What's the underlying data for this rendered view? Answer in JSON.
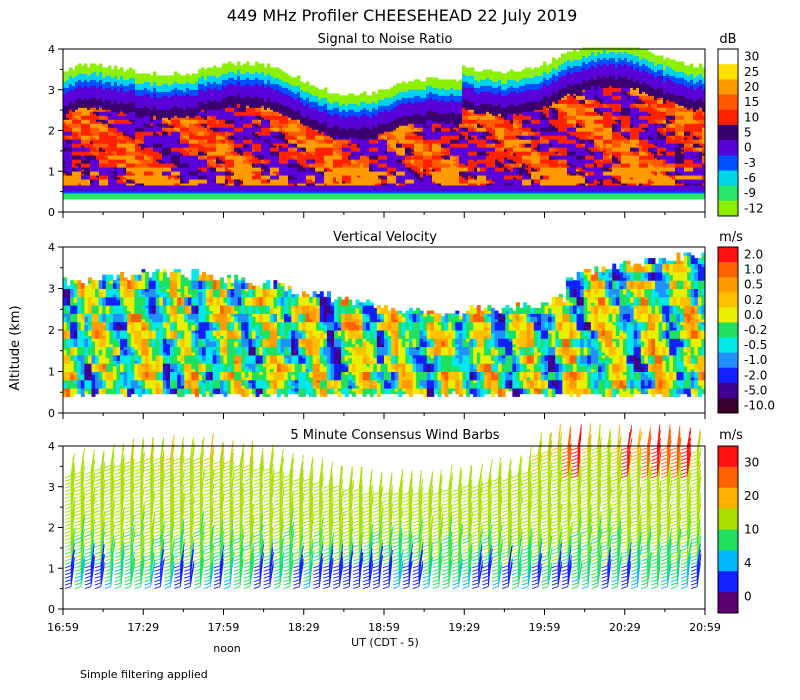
{
  "colors": {
    "snr": [
      "#8cf000",
      "#28e86a",
      "#00d4e8",
      "#0050ff",
      "#5a00d8",
      "#3a0070",
      "#ff2200",
      "#ff5a00",
      "#ff9a00",
      "#ffe000",
      "#ffffff"
    ],
    "velocity": [
      "#3c0030",
      "#400090",
      "#1020ff",
      "#2090ff",
      "#00e8e8",
      "#20e060",
      "#e8f000",
      "#ffc000",
      "#ff9a00",
      "#ff6000",
      "#ff1010"
    ],
    "wind": [
      "#5a0070",
      "#1020ff",
      "#00b8ff",
      "#20e060",
      "#a8e000",
      "#ffb000",
      "#ff6000",
      "#ff1010"
    ]
  },
  "chart_data": [
    {
      "type": "heatmap",
      "title": "449 MHz Profiler CHEESEHEAD 22 July 2019",
      "panel_title": "Signal to Noise Ratio",
      "ylabel": "Altitude (km)",
      "ylim": [
        0,
        4
      ],
      "y_ticks": [
        "0",
        "1",
        "2",
        "3",
        "4"
      ],
      "x_ticks": [
        "16:59",
        "17:29",
        "17:59",
        "18:29",
        "18:59",
        "19:29",
        "19:59",
        "20:29",
        "20:59"
      ],
      "xlabel": "UT  (CDT - 5)",
      "colorbar_unit": "dB",
      "colorbar_labels": [
        "30",
        "25",
        "20",
        "15",
        "10",
        "5",
        "0",
        "-3",
        "-6",
        "-9",
        "-12"
      ]
    },
    {
      "type": "heatmap",
      "panel_title": "Vertical Velocity",
      "ylim": [
        0,
        4
      ],
      "y_ticks": [
        "0",
        "1",
        "2",
        "3",
        "4"
      ],
      "colorbar_unit": "m/s",
      "colorbar_labels": [
        "2.0",
        "1.0",
        "0.5",
        "0.2",
        "0.0",
        "-0.2",
        "-0.5",
        "-1.0",
        "-2.0",
        "-5.0",
        "-10.0"
      ]
    },
    {
      "type": "scatter",
      "panel_title": "5 Minute Consensus Wind Barbs",
      "ylim": [
        0,
        4
      ],
      "y_ticks": [
        "0",
        "1",
        "2",
        "3",
        "4"
      ],
      "colorbar_unit": "m/s",
      "colorbar_labels": [
        "30",
        "20",
        "10",
        "4",
        "0"
      ]
    }
  ],
  "annotations": {
    "noon_label": "noon",
    "filter_note": "Simple filtering applied"
  }
}
